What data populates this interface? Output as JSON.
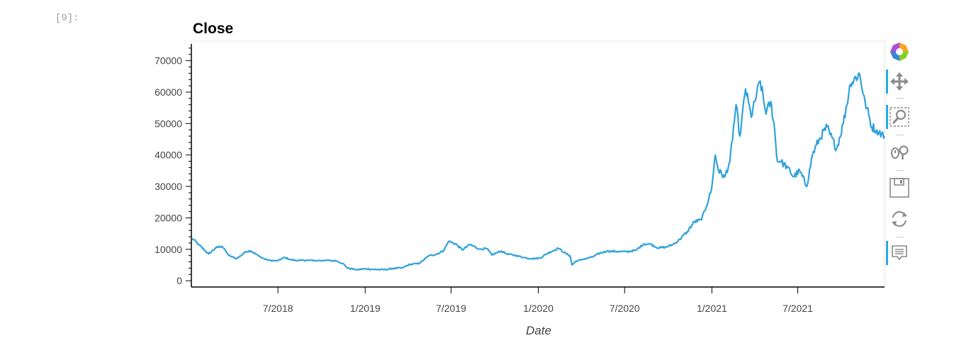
{
  "cell": {
    "prompt": "[9]:"
  },
  "chart_data": {
    "type": "line",
    "title": "Close",
    "xlabel": "Date",
    "ylabel": "",
    "ylim": [
      -2000,
      76000
    ],
    "xlim": [
      "2018-01-01",
      "2021-12-31"
    ],
    "yticks": [
      0,
      10000,
      20000,
      30000,
      40000,
      50000,
      60000,
      70000
    ],
    "ytick_labels": [
      "0",
      "10000",
      "20000",
      "30000",
      "40000",
      "50000",
      "60000",
      "70000"
    ],
    "xticks": [
      "2018-07-01",
      "2019-01-01",
      "2019-07-01",
      "2020-01-01",
      "2020-07-01",
      "2021-01-01",
      "2021-07-01"
    ],
    "xtick_labels": [
      "7/2018",
      "1/2019",
      "7/2019",
      "1/2020",
      "7/2020",
      "1/2021",
      "7/2021"
    ],
    "grid": false,
    "line_color": "#30a2da",
    "series": [
      {
        "x": [
          "2018-01-01",
          "2018-01-15",
          "2018-02-05",
          "2018-02-20",
          "2018-03-05",
          "2018-03-20",
          "2018-04-05",
          "2018-04-25",
          "2018-05-05",
          "2018-05-25",
          "2018-06-10",
          "2018-06-30",
          "2018-07-15",
          "2018-07-28",
          "2018-08-10",
          "2018-08-25",
          "2018-09-05",
          "2018-09-20",
          "2018-10-10",
          "2018-11-01",
          "2018-11-15",
          "2018-11-25",
          "2018-12-15",
          "2019-01-01",
          "2019-01-20",
          "2019-02-10",
          "2019-03-01",
          "2019-03-20",
          "2019-04-05",
          "2019-04-25",
          "2019-05-15",
          "2019-06-01",
          "2019-06-15",
          "2019-06-26",
          "2019-07-10",
          "2019-07-25",
          "2019-08-10",
          "2019-08-30",
          "2019-09-15",
          "2019-09-25",
          "2019-10-15",
          "2019-10-26",
          "2019-11-15",
          "2019-12-01",
          "2019-12-18",
          "2020-01-05",
          "2020-01-20",
          "2020-02-12",
          "2020-02-28",
          "2020-03-08",
          "2020-03-12",
          "2020-03-20",
          "2020-04-05",
          "2020-04-25",
          "2020-05-10",
          "2020-05-25",
          "2020-06-15",
          "2020-07-05",
          "2020-07-25",
          "2020-08-10",
          "2020-08-25",
          "2020-09-10",
          "2020-09-25",
          "2020-10-10",
          "2020-10-25",
          "2020-11-10",
          "2020-11-25",
          "2020-12-10",
          "2020-12-20",
          "2020-12-31",
          "2021-01-08",
          "2021-01-15",
          "2021-01-28",
          "2021-02-08",
          "2021-02-21",
          "2021-03-01",
          "2021-03-13",
          "2021-03-25",
          "2021-04-05",
          "2021-04-13",
          "2021-04-25",
          "2021-05-05",
          "2021-05-12",
          "2021-05-19",
          "2021-05-25",
          "2021-06-10",
          "2021-06-22",
          "2021-07-05",
          "2021-07-20",
          "2021-08-01",
          "2021-08-15",
          "2021-09-01",
          "2021-09-07",
          "2021-09-21",
          "2021-10-05",
          "2021-10-20",
          "2021-11-08",
          "2021-11-20",
          "2021-12-04",
          "2021-12-15",
          "2021-12-31"
        ],
        "y": [
          13500,
          11500,
          8500,
          10500,
          11000,
          8000,
          7000,
          9300,
          9500,
          7500,
          6500,
          6300,
          7400,
          6700,
          6400,
          6500,
          6500,
          6400,
          6500,
          6300,
          5500,
          4000,
          3500,
          3800,
          3600,
          3500,
          3900,
          4100,
          5200,
          5500,
          7900,
          8500,
          9500,
          12500,
          11800,
          9800,
          11500,
          10100,
          10200,
          8200,
          9500,
          8500,
          8000,
          7400,
          7000,
          7200,
          8700,
          10300,
          8700,
          7900,
          5000,
          6200,
          6800,
          7600,
          8800,
          9400,
          9300,
          9200,
          9700,
          11700,
          11600,
          10400,
          10700,
          11400,
          13100,
          15600,
          18800,
          19300,
          23500,
          29000,
          40000,
          35000,
          33000,
          38000,
          56000,
          46000,
          61000,
          52000,
          59000,
          63500,
          53000,
          57000,
          50000,
          38000,
          38000,
          36000,
          33000,
          35000,
          30000,
          40000,
          45000,
          49000,
          46500,
          42000,
          50000,
          62500,
          66000,
          57000,
          49000,
          48000,
          46000
        ]
      }
    ]
  },
  "toolbar": {
    "logo_icon": "bokeh-logo-icon",
    "tools": [
      "pan-icon",
      "box-zoom-icon",
      "wheel-zoom-icon",
      "save-icon",
      "reset-icon",
      "hover-icon"
    ]
  }
}
